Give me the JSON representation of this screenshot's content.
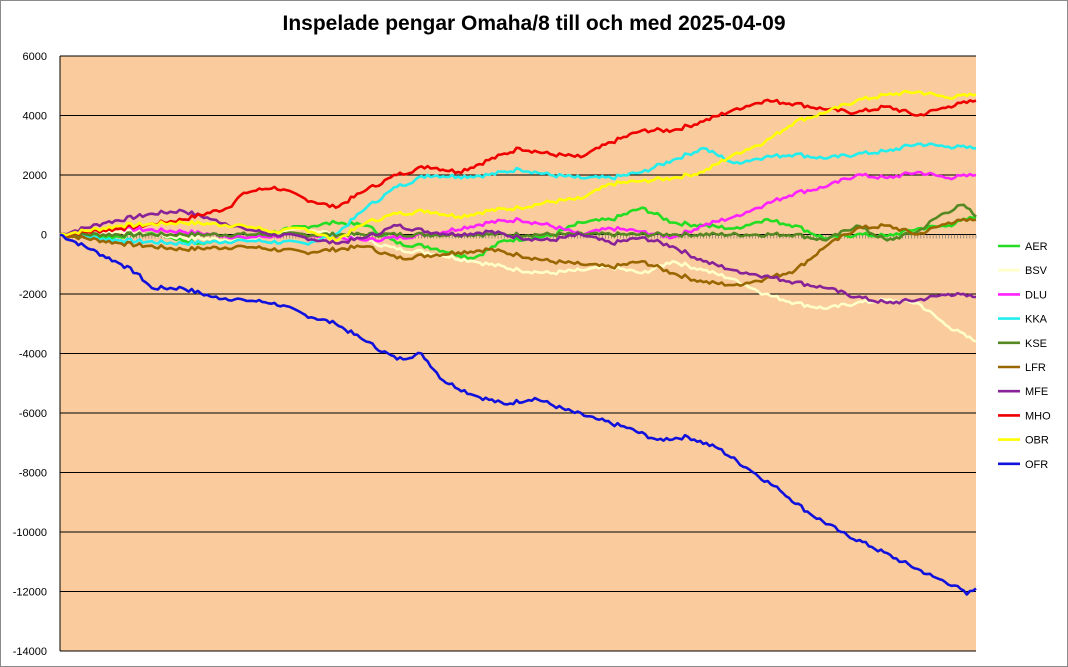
{
  "chart_data": {
    "type": "line",
    "title": "Inspelade pengar Omaha/8 till och med 2025-04-09",
    "xlabel": "",
    "ylabel": "",
    "ylim": [
      -14000,
      6000
    ],
    "yticks": [
      6000,
      4000,
      2000,
      0,
      -2000,
      -4000,
      -6000,
      -8000,
      -10000,
      -12000,
      -14000
    ],
    "x_count": 300,
    "grid": "horizontal",
    "legend_position": "right",
    "plot_background": "#FACB9C",
    "series": [
      {
        "name": "AER",
        "color": "#22DD22",
        "points": [
          [
            0,
            0
          ],
          [
            15,
            -100
          ],
          [
            30,
            50
          ],
          [
            45,
            -300
          ],
          [
            60,
            -150
          ],
          [
            75,
            200
          ],
          [
            90,
            400
          ],
          [
            100,
            300
          ],
          [
            110,
            -300
          ],
          [
            120,
            -400
          ],
          [
            135,
            -800
          ],
          [
            145,
            -200
          ],
          [
            160,
            -50
          ],
          [
            170,
            400
          ],
          [
            180,
            500
          ],
          [
            190,
            900
          ],
          [
            200,
            400
          ],
          [
            210,
            300
          ],
          [
            220,
            200
          ],
          [
            230,
            500
          ],
          [
            240,
            300
          ],
          [
            250,
            -150
          ],
          [
            260,
            0
          ],
          [
            270,
            -50
          ],
          [
            280,
            200
          ],
          [
            290,
            300
          ],
          [
            299,
            600
          ]
        ]
      },
      {
        "name": "BSV",
        "color": "#FFFFC8",
        "points": [
          [
            0,
            0
          ],
          [
            20,
            100
          ],
          [
            40,
            -100
          ],
          [
            60,
            -200
          ],
          [
            80,
            200
          ],
          [
            100,
            -200
          ],
          [
            110,
            -500
          ],
          [
            120,
            -600
          ],
          [
            135,
            -900
          ],
          [
            150,
            -1200
          ],
          [
            160,
            -1300
          ],
          [
            170,
            -1200
          ],
          [
            180,
            -1100
          ],
          [
            190,
            -1300
          ],
          [
            200,
            -900
          ],
          [
            210,
            -1200
          ],
          [
            220,
            -1500
          ],
          [
            230,
            -2000
          ],
          [
            240,
            -2300
          ],
          [
            250,
            -2500
          ],
          [
            260,
            -2300
          ],
          [
            270,
            -2200
          ],
          [
            280,
            -2300
          ],
          [
            290,
            -3100
          ],
          [
            299,
            -3600
          ]
        ]
      },
      {
        "name": "DLU",
        "color": "#FF22FF",
        "points": [
          [
            0,
            0
          ],
          [
            20,
            200
          ],
          [
            40,
            100
          ],
          [
            60,
            -100
          ],
          [
            80,
            0
          ],
          [
            100,
            -200
          ],
          [
            120,
            0
          ],
          [
            140,
            400
          ],
          [
            150,
            500
          ],
          [
            160,
            300
          ],
          [
            170,
            0
          ],
          [
            180,
            200
          ],
          [
            190,
            100
          ],
          [
            200,
            -100
          ],
          [
            210,
            300
          ],
          [
            220,
            600
          ],
          [
            230,
            1000
          ],
          [
            240,
            1400
          ],
          [
            250,
            1600
          ],
          [
            260,
            2000
          ],
          [
            270,
            1900
          ],
          [
            280,
            2100
          ],
          [
            290,
            1900
          ],
          [
            299,
            2000
          ]
        ]
      },
      {
        "name": "KKA",
        "color": "#22EEEE",
        "points": [
          [
            0,
            0
          ],
          [
            20,
            -200
          ],
          [
            40,
            -300
          ],
          [
            60,
            -200
          ],
          [
            80,
            -300
          ],
          [
            90,
            0
          ],
          [
            100,
            900
          ],
          [
            110,
            1600
          ],
          [
            120,
            2000
          ],
          [
            130,
            1950
          ],
          [
            140,
            2000
          ],
          [
            150,
            2200
          ],
          [
            160,
            2000
          ],
          [
            170,
            1900
          ],
          [
            180,
            1900
          ],
          [
            190,
            2100
          ],
          [
            200,
            2500
          ],
          [
            210,
            2900
          ],
          [
            220,
            2400
          ],
          [
            230,
            2600
          ],
          [
            240,
            2700
          ],
          [
            250,
            2550
          ],
          [
            260,
            2700
          ],
          [
            270,
            2800
          ],
          [
            280,
            3050
          ],
          [
            290,
            2950
          ],
          [
            299,
            2900
          ]
        ]
      },
      {
        "name": "KSE",
        "color": "#558822",
        "points": [
          [
            0,
            0
          ],
          [
            40,
            0
          ],
          [
            80,
            0
          ],
          [
            120,
            0
          ],
          [
            160,
            0
          ],
          [
            200,
            0
          ],
          [
            240,
            0
          ],
          [
            250,
            -200
          ],
          [
            260,
            300
          ],
          [
            270,
            -200
          ],
          [
            280,
            100
          ],
          [
            288,
            700
          ],
          [
            295,
            1000
          ],
          [
            299,
            600
          ]
        ]
      },
      {
        "name": "LFR",
        "color": "#996600",
        "points": [
          [
            0,
            0
          ],
          [
            20,
            -300
          ],
          [
            40,
            -500
          ],
          [
            60,
            -400
          ],
          [
            80,
            -600
          ],
          [
            100,
            -400
          ],
          [
            110,
            -800
          ],
          [
            120,
            -700
          ],
          [
            130,
            -600
          ],
          [
            140,
            -500
          ],
          [
            150,
            -700
          ],
          [
            160,
            -900
          ],
          [
            170,
            -1000
          ],
          [
            180,
            -1100
          ],
          [
            190,
            -900
          ],
          [
            200,
            -1300
          ],
          [
            210,
            -1600
          ],
          [
            220,
            -1700
          ],
          [
            230,
            -1500
          ],
          [
            240,
            -1200
          ],
          [
            250,
            -400
          ],
          [
            260,
            200
          ],
          [
            270,
            300
          ],
          [
            280,
            0
          ],
          [
            290,
            400
          ],
          [
            299,
            500
          ]
        ]
      },
      {
        "name": "MFE",
        "color": "#882299",
        "points": [
          [
            0,
            0
          ],
          [
            15,
            400
          ],
          [
            30,
            700
          ],
          [
            40,
            800
          ],
          [
            50,
            500
          ],
          [
            60,
            200
          ],
          [
            70,
            0
          ],
          [
            80,
            -100
          ],
          [
            90,
            -300
          ],
          [
            100,
            -100
          ],
          [
            110,
            300
          ],
          [
            120,
            100
          ],
          [
            130,
            0
          ],
          [
            140,
            100
          ],
          [
            150,
            -100
          ],
          [
            160,
            -200
          ],
          [
            170,
            0
          ],
          [
            180,
            -300
          ],
          [
            190,
            -100
          ],
          [
            200,
            -400
          ],
          [
            210,
            -900
          ],
          [
            220,
            -1200
          ],
          [
            230,
            -1400
          ],
          [
            240,
            -1600
          ],
          [
            250,
            -1800
          ],
          [
            260,
            -2100
          ],
          [
            270,
            -2300
          ],
          [
            280,
            -2200
          ],
          [
            290,
            -2000
          ],
          [
            299,
            -2100
          ]
        ]
      },
      {
        "name": "MHO",
        "color": "#EE0000",
        "points": [
          [
            0,
            0
          ],
          [
            20,
            200
          ],
          [
            40,
            500
          ],
          [
            55,
            900
          ],
          [
            60,
            1400
          ],
          [
            70,
            1600
          ],
          [
            80,
            1200
          ],
          [
            90,
            900
          ],
          [
            100,
            1500
          ],
          [
            110,
            2000
          ],
          [
            120,
            2300
          ],
          [
            130,
            2100
          ],
          [
            140,
            2500
          ],
          [
            150,
            2900
          ],
          [
            160,
            2700
          ],
          [
            170,
            2600
          ],
          [
            180,
            3100
          ],
          [
            190,
            3500
          ],
          [
            200,
            3500
          ],
          [
            210,
            3800
          ],
          [
            220,
            4200
          ],
          [
            230,
            4500
          ],
          [
            240,
            4400
          ],
          [
            250,
            4200
          ],
          [
            260,
            4100
          ],
          [
            270,
            4300
          ],
          [
            280,
            4000
          ],
          [
            290,
            4300
          ],
          [
            299,
            4500
          ]
        ]
      },
      {
        "name": "OBR",
        "color": "#FFFF00",
        "points": [
          [
            0,
            0
          ],
          [
            20,
            300
          ],
          [
            40,
            400
          ],
          [
            60,
            300
          ],
          [
            70,
            100
          ],
          [
            80,
            200
          ],
          [
            90,
            -200
          ],
          [
            100,
            400
          ],
          [
            110,
            700
          ],
          [
            120,
            800
          ],
          [
            130,
            600
          ],
          [
            140,
            800
          ],
          [
            150,
            900
          ],
          [
            160,
            1100
          ],
          [
            170,
            1200
          ],
          [
            180,
            1700
          ],
          [
            190,
            1800
          ],
          [
            200,
            1900
          ],
          [
            210,
            2100
          ],
          [
            220,
            2700
          ],
          [
            230,
            3100
          ],
          [
            240,
            3800
          ],
          [
            250,
            4100
          ],
          [
            260,
            4500
          ],
          [
            270,
            4700
          ],
          [
            280,
            4800
          ],
          [
            290,
            4600
          ],
          [
            299,
            4700
          ]
        ]
      },
      {
        "name": "OFR",
        "color": "#1111DD",
        "points": [
          [
            0,
            0
          ],
          [
            10,
            -500
          ],
          [
            20,
            -1000
          ],
          [
            25,
            -1300
          ],
          [
            30,
            -1800
          ],
          [
            40,
            -1800
          ],
          [
            50,
            -2100
          ],
          [
            60,
            -2200
          ],
          [
            70,
            -2300
          ],
          [
            80,
            -2700
          ],
          [
            90,
            -3000
          ],
          [
            100,
            -3600
          ],
          [
            110,
            -4200
          ],
          [
            118,
            -4000
          ],
          [
            125,
            -4900
          ],
          [
            135,
            -5400
          ],
          [
            145,
            -5700
          ],
          [
            155,
            -5500
          ],
          [
            165,
            -5900
          ],
          [
            175,
            -6200
          ],
          [
            185,
            -6500
          ],
          [
            195,
            -6900
          ],
          [
            205,
            -6800
          ],
          [
            215,
            -7200
          ],
          [
            225,
            -7900
          ],
          [
            235,
            -8600
          ],
          [
            245,
            -9400
          ],
          [
            255,
            -10000
          ],
          [
            265,
            -10500
          ],
          [
            275,
            -11000
          ],
          [
            285,
            -11500
          ],
          [
            292,
            -11800
          ],
          [
            296,
            -12100
          ],
          [
            299,
            -11900
          ]
        ]
      }
    ]
  }
}
